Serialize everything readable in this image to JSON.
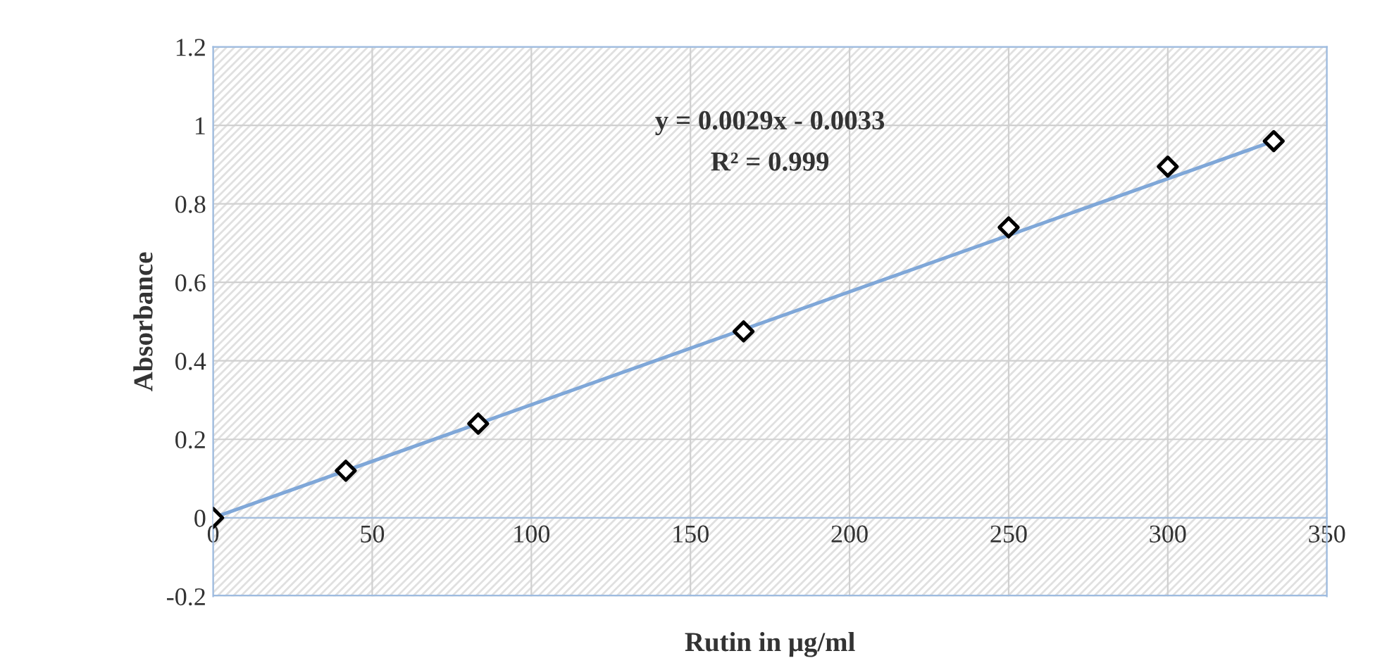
{
  "chart_data": {
    "type": "scatter",
    "xlabel": "Rutin in μg/ml",
    "ylabel": "Absorbance",
    "annotations": [
      "y = 0.0029x - 0.0033",
      "R² = 0.999"
    ],
    "x": [
      0,
      41.7,
      83.3,
      166.7,
      250,
      300,
      333.3
    ],
    "series": [
      {
        "color": "#000000",
        "marker": "diamond",
        "values": [
          0,
          0.12,
          0.24,
          0.475,
          0.74,
          0.895,
          0.96
        ]
      },
      {
        "type": "line",
        "color": "#7fa7d8",
        "x": [
          0,
          333.3
        ],
        "values": [
          0,
          0.96
        ]
      }
    ],
    "xlim": [
      0,
      350
    ],
    "xticks": [
      0,
      50,
      100,
      150,
      200,
      250,
      300,
      350
    ],
    "ylim": [
      -0.2,
      1.2
    ],
    "yticks": [
      -0.2,
      0,
      0.2,
      0.4,
      0.6,
      0.8,
      1,
      1.2
    ],
    "grid": true
  }
}
